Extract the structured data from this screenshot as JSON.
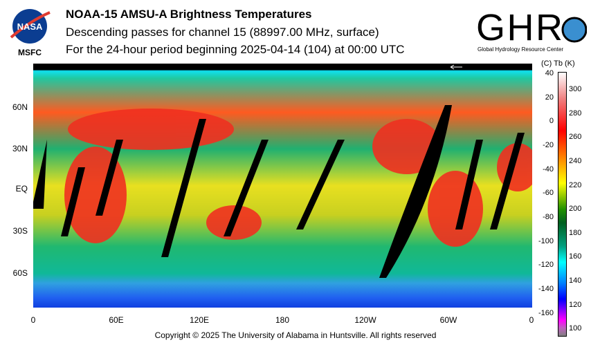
{
  "header": {
    "title": "NOAA-15 AMSU-A Brightness Temperatures",
    "subtitle1": "Descending passes for channel 15 (88997.00 MHz, surface)",
    "subtitle2": "For the 24-hour period beginning 2025-04-14 (104) at 00:00 UTC"
  },
  "logos": {
    "nasa": "NASA",
    "nasa_center": "MSFC",
    "ghrc": "GHRC",
    "ghrc_full": "Global Hydrology Resource Center"
  },
  "footer": {
    "copyright": "Copyright © 2025 The University of Alabama in Huntsville.  All rights reserved"
  },
  "chart_data": {
    "type": "heatmap",
    "title": "NOAA-15 AMSU-A Brightness Temperatures",
    "x_tick_labels": [
      "0",
      "60E",
      "120E",
      "180",
      "120W",
      "60W",
      "0"
    ],
    "y_tick_labels": [
      "60N",
      "30N",
      "EQ",
      "30S",
      "60S"
    ],
    "colorbar": {
      "header": "(C)  Tb  (K)",
      "celsius_ticks": [
        "40",
        "20",
        "0",
        "-20",
        "-40",
        "-60",
        "-80",
        "-100",
        "-120",
        "-140",
        "-160"
      ],
      "kelvin_ticks": [
        "300",
        "280",
        "260",
        "240",
        "220",
        "200",
        "180",
        "160",
        "140",
        "120",
        "100"
      ],
      "range_K": [
        95,
        315
      ]
    },
    "colors": {
      "low": "#808080",
      "mid": "#00ffff",
      "high": "#ffffff"
    }
  }
}
